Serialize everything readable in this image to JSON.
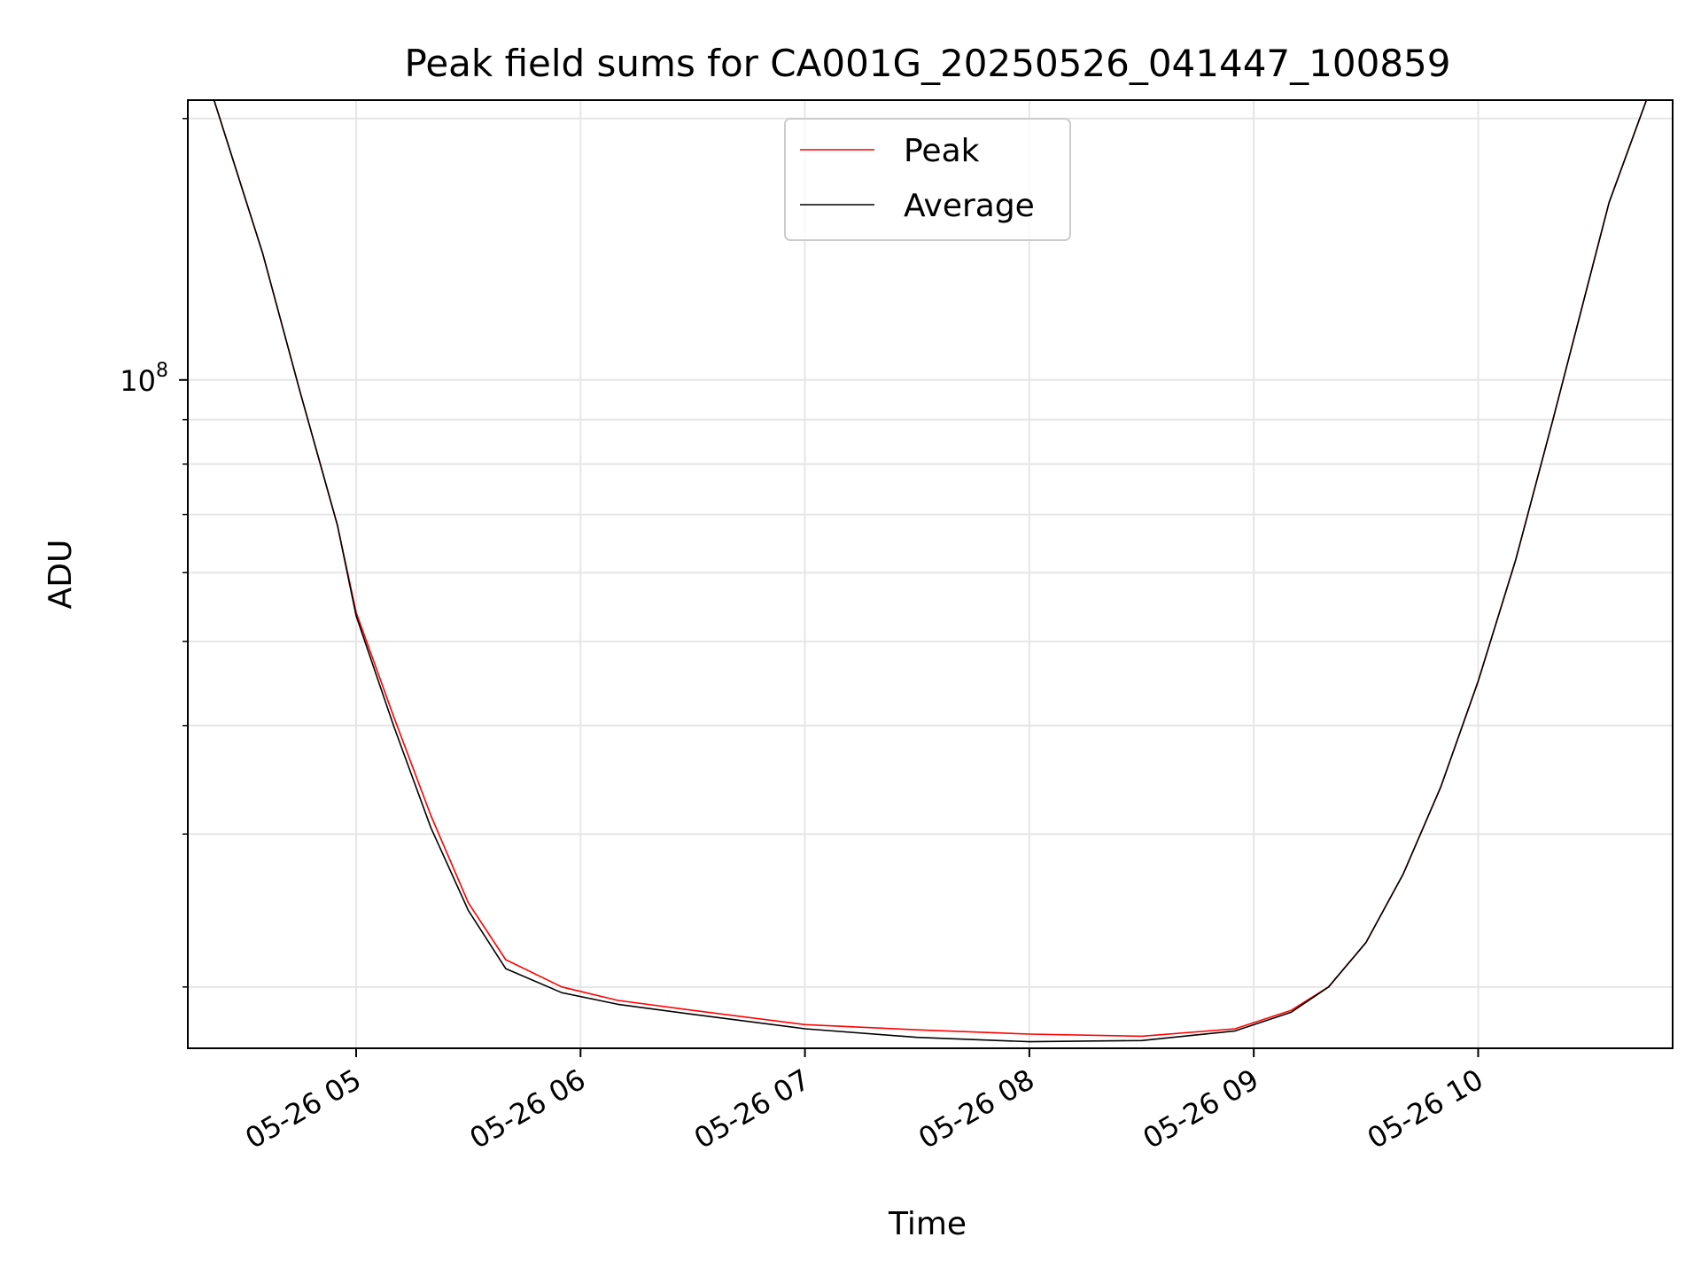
{
  "chart_data": {
    "type": "line",
    "title": "Peak field sums for CA001G_20250526_041447_100859",
    "xlabel": "Time",
    "ylabel": "ADU",
    "yscale": "log",
    "grid": true,
    "legend_position": "top-center",
    "xlim": [
      "2025-05-26 04:15",
      "2025-05-26 10:52"
    ],
    "ylim": [
      17000000,
      210000000
    ],
    "x_ticks": [
      "05-26 05",
      "05-26 06",
      "05-26 07",
      "05-26 08",
      "05-26 09",
      "05-26 10"
    ],
    "y_ticks": [
      "10^8"
    ],
    "series": [
      {
        "name": "Peak",
        "color": "#ff0000",
        "x": [
          "2025-05-26 04:15",
          "2025-05-26 04:22",
          "2025-05-26 04:35",
          "2025-05-26 04:45",
          "2025-05-26 04:55",
          "2025-05-26 05:00",
          "2025-05-26 05:10",
          "2025-05-26 05:20",
          "2025-05-26 05:30",
          "2025-05-26 05:40",
          "2025-05-26 05:55",
          "2025-05-26 06:10",
          "2025-05-26 06:30",
          "2025-05-26 07:00",
          "2025-05-26 07:30",
          "2025-05-26 08:00",
          "2025-05-26 08:30",
          "2025-05-26 08:55",
          "2025-05-26 09:10",
          "2025-05-26 09:20",
          "2025-05-26 09:30",
          "2025-05-26 09:40",
          "2025-05-26 09:50",
          "2025-05-26 10:00",
          "2025-05-26 10:10",
          "2025-05-26 10:20",
          "2025-05-26 10:35",
          "2025-05-26 10:45",
          "2025-05-26 10:52"
        ],
        "y": [
          210000000,
          210000000,
          140000000,
          97000000,
          68000000,
          54000000,
          41000000,
          31500000,
          25000000,
          21500000,
          20000000,
          19300000,
          18800000,
          18100000,
          17850000,
          17650000,
          17550000,
          17900000,
          18800000,
          20000000,
          22500000,
          27000000,
          34000000,
          45000000,
          62000000,
          90000000,
          160000000,
          210000000,
          210000000
        ]
      },
      {
        "name": "Average",
        "color": "#000000",
        "x": [
          "2025-05-26 04:15",
          "2025-05-26 04:22",
          "2025-05-26 04:35",
          "2025-05-26 04:45",
          "2025-05-26 04:55",
          "2025-05-26 05:00",
          "2025-05-26 05:10",
          "2025-05-26 05:20",
          "2025-05-26 05:30",
          "2025-05-26 05:40",
          "2025-05-26 05:55",
          "2025-05-26 06:10",
          "2025-05-26 06:30",
          "2025-05-26 07:00",
          "2025-05-26 07:30",
          "2025-05-26 08:00",
          "2025-05-26 08:30",
          "2025-05-26 08:55",
          "2025-05-26 09:10",
          "2025-05-26 09:20",
          "2025-05-26 09:30",
          "2025-05-26 09:40",
          "2025-05-26 09:50",
          "2025-05-26 10:00",
          "2025-05-26 10:10",
          "2025-05-26 10:20",
          "2025-05-26 10:35",
          "2025-05-26 10:45",
          "2025-05-26 10:52"
        ],
        "y": [
          210000000,
          210000000,
          140000000,
          97000000,
          68000000,
          53500000,
          40000000,
          30500000,
          24500000,
          21000000,
          19700000,
          19100000,
          18600000,
          17900000,
          17500000,
          17300000,
          17350000,
          17800000,
          18700000,
          20000000,
          22500000,
          27000000,
          34000000,
          45000000,
          62000000,
          90000000,
          160000000,
          210000000,
          210000000
        ]
      }
    ]
  }
}
